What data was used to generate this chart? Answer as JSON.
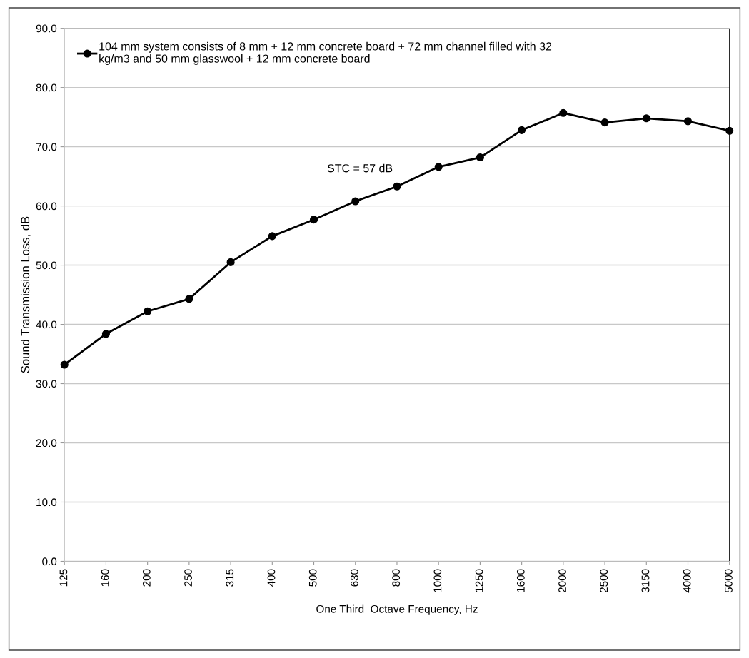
{
  "chart_data": {
    "type": "line",
    "xlabel": "One Third  Octave Frequency, Hz",
    "ylabel": "Sound Transmission Loss, dB",
    "categories": [
      "125",
      "160",
      "200",
      "250",
      "315",
      "400",
      "500",
      "630",
      "800",
      "1000",
      "1250",
      "1600",
      "2000",
      "2500",
      "3150",
      "4000",
      "5000"
    ],
    "series": [
      {
        "name": "104 mm system consists of 8 mm + 12 mm concrete board + 72 mm channel filled with 32\nkg/m3 and 50 mm glasswool + 12 mm concrete board",
        "color": "#000000",
        "values": [
          33.2,
          38.4,
          42.2,
          44.3,
          50.5,
          54.9,
          57.7,
          60.8,
          63.3,
          66.6,
          68.2,
          72.8,
          75.7,
          74.1,
          74.8,
          74.3,
          72.7
        ]
      }
    ],
    "annotations": [
      "STC = 57 dB"
    ],
    "ylim": [
      0,
      90
    ],
    "yticks": [
      {
        "value": 0,
        "label": "0.0"
      },
      {
        "value": 10,
        "label": "10.0"
      },
      {
        "value": 20,
        "label": "20.0"
      },
      {
        "value": 30,
        "label": "30.0"
      },
      {
        "value": 40,
        "label": "40.0"
      },
      {
        "value": 50,
        "label": "50.0"
      },
      {
        "value": 60,
        "label": "60.0"
      },
      {
        "value": 70,
        "label": "70.0"
      },
      {
        "value": 80,
        "label": "80.0"
      },
      {
        "value": 90,
        "label": "90.0"
      }
    ],
    "grid": "y",
    "legend": "top left",
    "marker": "circle",
    "line_style": "solid"
  }
}
